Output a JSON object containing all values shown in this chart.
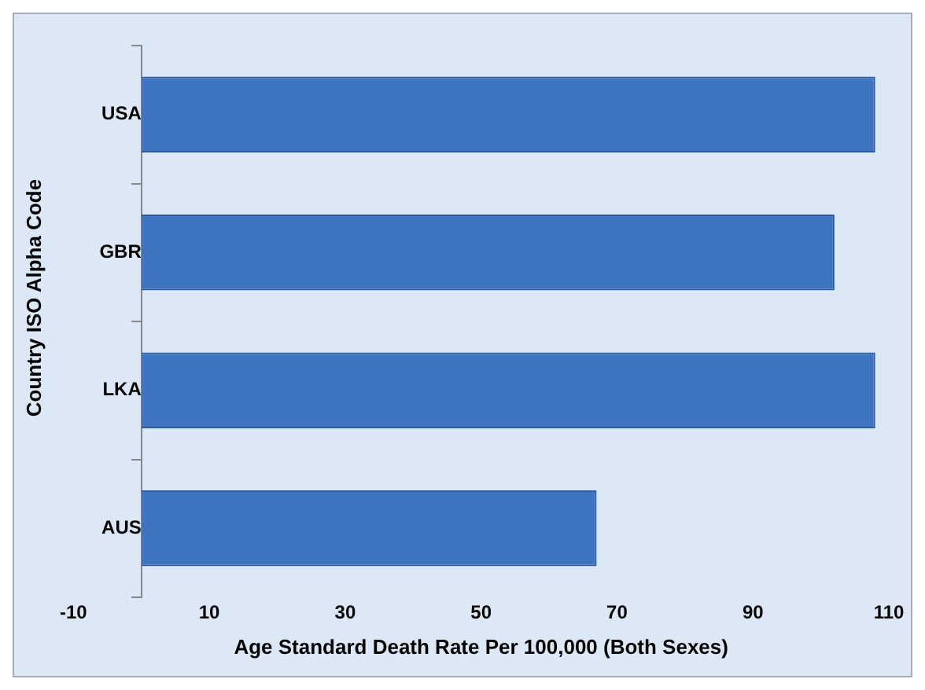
{
  "chart_data": {
    "type": "bar",
    "orientation": "horizontal",
    "categories": [
      "USA",
      "GBR",
      "LKA",
      "AUS"
    ],
    "values": [
      108,
      102,
      108,
      67
    ],
    "color": "#3f74c0",
    "xlabel": "Age Standard Death Rate Per 100,000 (Both Sexes)",
    "ylabel": "Country ISO Alpha Code",
    "xlim": [
      -10,
      110
    ],
    "xticks": [
      -10,
      10,
      30,
      50,
      70,
      90,
      110
    ],
    "grid": false,
    "legend": false
  }
}
